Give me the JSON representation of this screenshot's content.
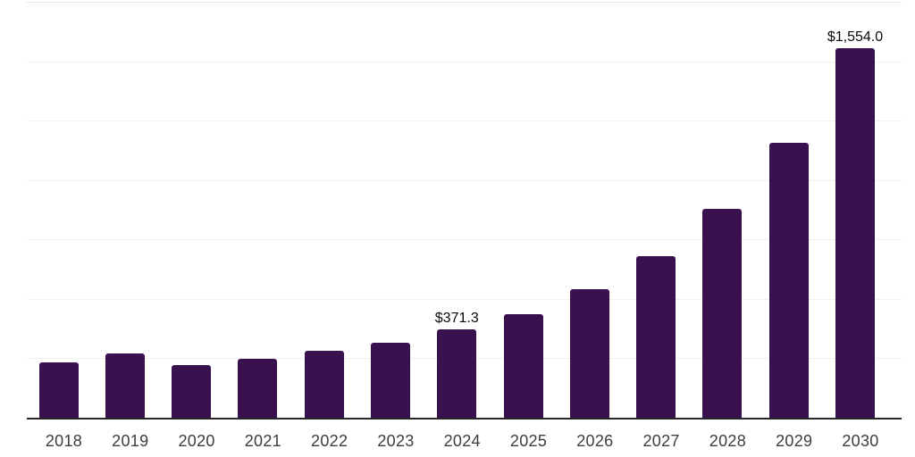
{
  "chart_data": {
    "type": "bar",
    "title": "",
    "xlabel": "",
    "ylabel": "",
    "categories": [
      "2018",
      "2019",
      "2020",
      "2021",
      "2022",
      "2023",
      "2024",
      "2025",
      "2026",
      "2027",
      "2028",
      "2029",
      "2030"
    ],
    "values": [
      233,
      270,
      223,
      248,
      281,
      317,
      371.3,
      437,
      539,
      678,
      877,
      1155,
      1554
    ],
    "value_labels": [
      "",
      "",
      "",
      "",
      "",
      "",
      "$371.3",
      "",
      "",
      "",
      "",
      "",
      "$1,554.0"
    ],
    "ylim": [
      0,
      1750
    ],
    "grid_interval": 250,
    "grid": "horizontal-only",
    "legend_position": "none",
    "y_axis_tick_labels_visible": false,
    "colors": {
      "bar": "#38114E",
      "axis_line": "#262626",
      "gridline": "#f0f0f0",
      "top_gridline": "#e8e8e8",
      "tick_label": "#3d3d3d",
      "value_label": "#0a0a0a",
      "background": "#ffffff"
    }
  }
}
